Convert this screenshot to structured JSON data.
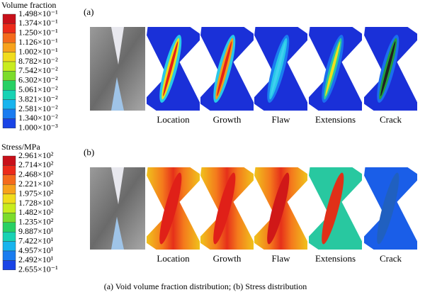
{
  "colorbar_a": {
    "title": "Volume fraction",
    "labels": [
      "1.498×10⁻¹",
      "1.374×10⁻¹",
      "1.250×10⁻¹",
      "1.126×10⁻¹",
      "1.002×10⁻¹",
      "8.782×10⁻²",
      "7.542×10⁻²",
      "6.302×10⁻²",
      "5.061×10⁻²",
      "3.821×10⁻²",
      "2.581×10⁻²",
      "1.340×10⁻²",
      "1.000×10⁻³"
    ]
  },
  "colorbar_b": {
    "title": "Stress/MPa",
    "labels": [
      "2.961×10²",
      "2.714×10²",
      "2.468×10²",
      "2.221×10²",
      "1.975×10²",
      "1.728×10²",
      "1.482×10²",
      "1.235×10²",
      "9.887×10¹",
      "7.422×10¹",
      "4.957×10¹",
      "2.492×10¹",
      "2.655×10⁻¹"
    ]
  },
  "panel_a": {
    "label": "(a)",
    "captions": [
      "Location",
      "Growth",
      "Flaw",
      "Extensions",
      "Crack"
    ]
  },
  "panel_b": {
    "label": "(b)",
    "captions": [
      "Location",
      "Growth",
      "Flaw",
      "Extensions",
      "Crack"
    ]
  },
  "caption": "(a)  Void volume fraction distribution; (b)  Stress distribution"
}
